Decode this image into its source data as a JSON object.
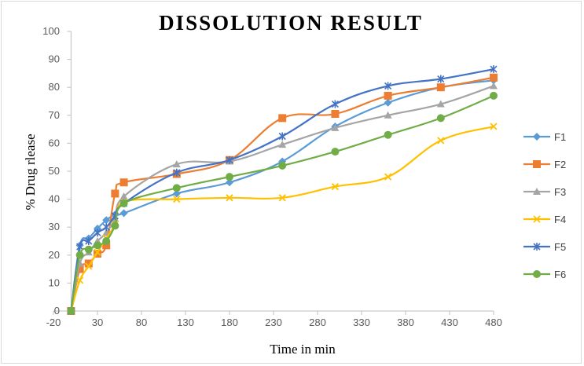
{
  "chart_data": {
    "type": "line",
    "title": "DISSOLUTION RESULT",
    "xlabel": "Time in min",
    "ylabel": "% Drug rlease",
    "xlim": [
      -20,
      480
    ],
    "ylim": [
      0,
      100
    ],
    "x_ticks": [
      -20,
      30,
      80,
      130,
      180,
      230,
      280,
      330,
      380,
      430,
      480
    ],
    "y_ticks": [
      0,
      10,
      20,
      30,
      40,
      50,
      60,
      70,
      80,
      90,
      100
    ],
    "grid": false,
    "legend_position": "right",
    "series": [
      {
        "name": "F1",
        "color": "#5B9BD5",
        "marker": "diamond",
        "x": [
          0,
          10,
          20,
          30,
          40,
          50,
          60,
          120,
          180,
          240,
          300,
          360,
          420,
          480
        ],
        "y": [
          0,
          23.5,
          26,
          29.5,
          32.5,
          34.5,
          35,
          42,
          46,
          53.5,
          66,
          74.5,
          80,
          82.5
        ]
      },
      {
        "name": "F2",
        "color": "#ED7D31",
        "marker": "square",
        "x": [
          0,
          10,
          20,
          30,
          40,
          50,
          60,
          120,
          180,
          240,
          300,
          360,
          420,
          480
        ],
        "y": [
          0,
          15,
          17,
          20.5,
          23.5,
          42,
          46,
          49,
          54,
          69,
          70.5,
          77,
          80,
          83.5
        ]
      },
      {
        "name": "F3",
        "color": "#A5A5A5",
        "marker": "triangle",
        "x": [
          0,
          10,
          20,
          30,
          40,
          50,
          60,
          120,
          180,
          240,
          300,
          360,
          420,
          480
        ],
        "y": [
          0,
          17,
          21,
          25,
          28,
          33,
          41,
          52.5,
          53.5,
          59.5,
          65.5,
          70,
          74,
          80.5
        ]
      },
      {
        "name": "F4",
        "color": "#FFC000",
        "marker": "x",
        "x": [
          0,
          10,
          20,
          30,
          40,
          50,
          60,
          120,
          180,
          240,
          300,
          360,
          420,
          480
        ],
        "y": [
          0,
          11,
          16,
          21,
          26,
          31,
          39,
          40,
          40.5,
          40.5,
          44.5,
          48,
          61,
          66
        ]
      },
      {
        "name": "F5",
        "color": "#4472C4",
        "marker": "star",
        "x": [
          0,
          10,
          20,
          30,
          40,
          50,
          60,
          120,
          180,
          240,
          300,
          360,
          420,
          480
        ],
        "y": [
          0,
          23,
          25,
          28,
          30,
          34,
          38.5,
          49.5,
          54,
          62.5,
          74,
          80.5,
          83,
          86.5
        ]
      },
      {
        "name": "F6",
        "color": "#70AD47",
        "marker": "circle",
        "x": [
          0,
          10,
          20,
          30,
          40,
          50,
          60,
          120,
          180,
          240,
          300,
          360,
          420,
          480
        ],
        "y": [
          0,
          20,
          22,
          23.5,
          25,
          30.5,
          38.5,
          44,
          48,
          52,
          57,
          63,
          69,
          77
        ]
      }
    ]
  }
}
